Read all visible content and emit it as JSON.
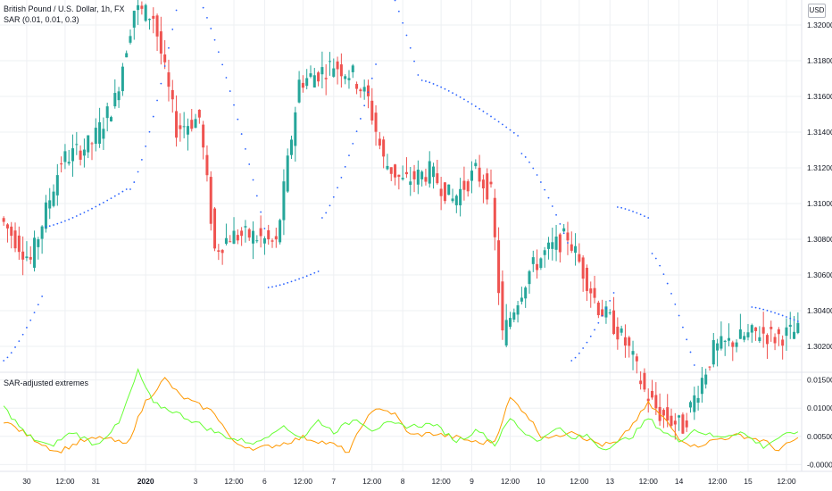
{
  "header": {
    "symbol_title": "British Pound / U.S. Dollar, 1h, FX",
    "indicator_label": "SAR (0.01, 0.01, 0.3)",
    "currency_button": "USD"
  },
  "lower_pane": {
    "title": "SAR-adjusted extremes"
  },
  "colors": {
    "up": "#26a69a",
    "down": "#ef5350",
    "sar": "#2962ff",
    "line_orange": "#ff9800",
    "line_green": "#66ff33",
    "grid": "#eef0f3",
    "axis_text": "#131722"
  },
  "chart_data": [
    {
      "type": "candlestick",
      "title": "British Pound / U.S. Dollar, 1h, FX",
      "series_overlay": "SAR (0.01, 0.01, 0.3)",
      "y_ticks": [
        "1.32000",
        "1.31800",
        "1.31600",
        "1.31400",
        "1.31200",
        "1.31000",
        "1.30800",
        "1.30600",
        "1.30400",
        "1.30200"
      ],
      "y_tick_values": [
        1.32,
        1.318,
        1.316,
        1.314,
        1.312,
        1.31,
        1.308,
        1.306,
        1.304,
        1.302
      ],
      "ylim": [
        1.3006,
        1.3214
      ],
      "x_ticks": [
        "30",
        "12:00",
        "31",
        "2020",
        "3",
        "12:00",
        "6",
        "12:00",
        "7",
        "12:00",
        "8",
        "12:00",
        "9",
        "12:00",
        "10",
        "12:00",
        "13",
        "12:00",
        "14",
        "12:00",
        "15",
        "12:00"
      ],
      "x_tick_index": [
        6,
        16,
        24,
        37,
        50,
        60,
        68,
        78,
        86,
        96,
        104,
        114,
        122,
        132,
        140,
        150,
        158,
        168,
        176,
        186,
        194,
        204
      ],
      "bar_count": 208,
      "grid": true,
      "anchor_index": [
        0,
        8,
        16,
        24,
        30,
        35,
        40,
        46,
        52,
        56,
        60,
        66,
        72,
        78,
        82,
        87,
        92,
        96,
        100,
        105,
        112,
        118,
        124,
        128,
        131,
        134,
        138,
        142,
        148,
        152,
        156,
        160,
        164,
        168,
        172,
        178,
        186,
        192,
        198,
        202,
        207
      ],
      "anchor_price": [
        1.3092,
        1.3068,
        1.3124,
        1.3134,
        1.3158,
        1.3209,
        1.3205,
        1.3142,
        1.3148,
        1.3074,
        1.3082,
        1.3082,
        1.3077,
        1.3168,
        1.3172,
        1.3178,
        1.3172,
        1.3158,
        1.3124,
        1.3112,
        1.3118,
        1.3102,
        1.3118,
        1.3105,
        1.3026,
        1.3042,
        1.3062,
        1.3072,
        1.3082,
        1.3062,
        1.3042,
        1.3032,
        1.3018,
        1.2995,
        1.2982,
        1.2975,
        1.3018,
        1.3024,
        1.3028,
        1.3025,
        1.3028
      ],
      "sar_segments": [
        {
          "from": 0,
          "to": 10,
          "start": 1.3012,
          "end": 1.3048
        },
        {
          "from": 11,
          "to": 32,
          "start": 1.3087,
          "end": 1.3108
        },
        {
          "from": 33,
          "to": 48,
          "start": 1.3108,
          "end": 1.3242
        },
        {
          "from": 49,
          "to": 68,
          "start": 1.3222,
          "end": 1.3086
        },
        {
          "from": 69,
          "to": 82,
          "start": 1.3053,
          "end": 1.3062
        },
        {
          "from": 83,
          "to": 97,
          "start": 1.3092,
          "end": 1.3178
        },
        {
          "from": 98,
          "to": 108,
          "start": 1.3232,
          "end": 1.3172
        },
        {
          "from": 109,
          "to": 134,
          "start": 1.3169,
          "end": 1.3138
        },
        {
          "from": 135,
          "to": 147,
          "start": 1.3128,
          "end": 1.3078
        },
        {
          "from": 148,
          "to": 159,
          "start": 1.3012,
          "end": 1.305
        },
        {
          "from": 160,
          "to": 168,
          "start": 1.3098,
          "end": 1.3092
        },
        {
          "from": 169,
          "to": 181,
          "start": 1.3072,
          "end": 1.3002
        },
        {
          "from": 182,
          "to": 194,
          "start": 1.2998,
          "end": 1.2996
        },
        {
          "from": 195,
          "to": 207,
          "start": 1.3042,
          "end": 1.3034
        }
      ]
    },
    {
      "type": "line",
      "title": "SAR-adjusted extremes",
      "y_ticks": [
        "0.01500",
        "0.01000",
        "0.00500",
        "-0.00000"
      ],
      "y_tick_values": [
        0.015,
        0.01,
        0.005,
        0.0
      ],
      "ylim": [
        -0.0012,
        0.0162
      ],
      "grid": true,
      "series": [
        {
          "color": "#ff9800",
          "x": [
            0,
            8,
            14,
            20,
            26,
            32,
            37,
            42,
            46,
            50,
            55,
            60,
            66,
            72,
            78,
            82,
            86,
            90,
            94,
            98,
            102,
            106,
            112,
            118,
            124,
            128,
            132,
            136,
            140,
            144,
            148,
            152,
            156,
            160,
            164,
            168,
            172,
            176,
            180,
            186,
            192,
            198,
            202,
            207
          ],
          "values": [
            0.0078,
            0.0045,
            0.0022,
            0.0041,
            0.0048,
            0.0035,
            0.0112,
            0.0152,
            0.0122,
            0.0108,
            0.0092,
            0.0038,
            0.0028,
            0.0036,
            0.0048,
            0.0042,
            0.0035,
            0.0022,
            0.0078,
            0.0102,
            0.0088,
            0.0052,
            0.0055,
            0.0048,
            0.0038,
            0.0042,
            0.0118,
            0.0092,
            0.0052,
            0.0048,
            0.0062,
            0.0045,
            0.0035,
            0.0038,
            0.0072,
            0.0108,
            0.0082,
            0.0048,
            0.0032,
            0.0045,
            0.0052,
            0.0042,
            0.0025,
            0.0048
          ]
        },
        {
          "color": "#66ff33",
          "x": [
            0,
            6,
            12,
            18,
            24,
            30,
            35,
            39,
            44,
            50,
            55,
            60,
            66,
            72,
            78,
            82,
            86,
            92,
            96,
            100,
            106,
            112,
            118,
            124,
            128,
            132,
            136,
            140,
            144,
            148,
            152,
            156,
            160,
            164,
            168,
            172,
            176,
            180,
            186,
            192,
            198,
            202,
            207
          ],
          "values": [
            0.0102,
            0.0052,
            0.0032,
            0.0058,
            0.0035,
            0.0072,
            0.0165,
            0.0108,
            0.0095,
            0.0075,
            0.0058,
            0.0045,
            0.0038,
            0.0068,
            0.0048,
            0.0078,
            0.0058,
            0.0082,
            0.0062,
            0.0072,
            0.0068,
            0.0072,
            0.0042,
            0.0062,
            0.0035,
            0.0082,
            0.0055,
            0.0042,
            0.0068,
            0.0045,
            0.0052,
            0.0028,
            0.0038,
            0.0052,
            0.0082,
            0.0058,
            0.0042,
            0.0062,
            0.0048,
            0.0058,
            0.0032,
            0.0048,
            0.0058
          ]
        }
      ]
    }
  ]
}
